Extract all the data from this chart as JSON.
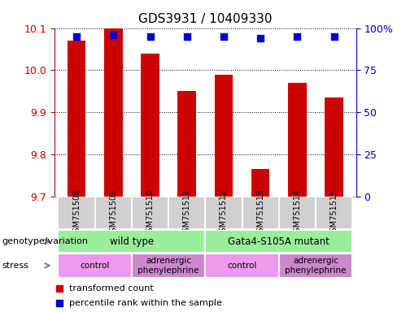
{
  "title": "GDS3931 / 10409330",
  "samples": [
    "GSM751508",
    "GSM751509",
    "GSM751510",
    "GSM751511",
    "GSM751512",
    "GSM751513",
    "GSM751514",
    "GSM751515"
  ],
  "transformed_counts": [
    10.07,
    10.1,
    10.04,
    9.95,
    9.99,
    9.765,
    9.97,
    9.935
  ],
  "percentile_ranks": [
    95,
    96,
    95,
    95,
    95,
    94,
    95,
    95
  ],
  "ylim_left": [
    9.7,
    10.1
  ],
  "ylim_right": [
    0,
    100
  ],
  "yticks_left": [
    9.7,
    9.8,
    9.9,
    10.0,
    10.1
  ],
  "yticks_right": [
    0,
    25,
    50,
    75,
    100
  ],
  "yticklabels_right": [
    "0",
    "25",
    "50",
    "75",
    "100%"
  ],
  "bar_color": "#cc0000",
  "dot_color": "#0000cc",
  "bar_bottom": 9.7,
  "dot_size": 40,
  "genotype_groups": [
    {
      "label": "wild type",
      "start": 0,
      "end": 4,
      "color": "#99ee99"
    },
    {
      "label": "Gata4-S105A mutant",
      "start": 4,
      "end": 8,
      "color": "#99ee99"
    }
  ],
  "stress_groups": [
    {
      "label": "control",
      "start": 0,
      "end": 2,
      "color": "#ee99ee"
    },
    {
      "label": "adrenergic\nphenylephrine",
      "start": 2,
      "end": 4,
      "color": "#cc88cc"
    },
    {
      "label": "control",
      "start": 4,
      "end": 6,
      "color": "#ee99ee"
    },
    {
      "label": "adrenergic\nphenylephrine",
      "start": 6,
      "end": 8,
      "color": "#cc88cc"
    }
  ],
  "left_axis_color": "#cc0000",
  "right_axis_color": "#0000cc",
  "legend_items": [
    {
      "label": "transformed count",
      "color": "#cc0000"
    },
    {
      "label": "percentile rank within the sample",
      "color": "#0000cc"
    }
  ],
  "genotype_label": "genotype/variation",
  "stress_label": "stress",
  "arrow_color": "#888888",
  "sample_box_color": "#d0d0d0"
}
